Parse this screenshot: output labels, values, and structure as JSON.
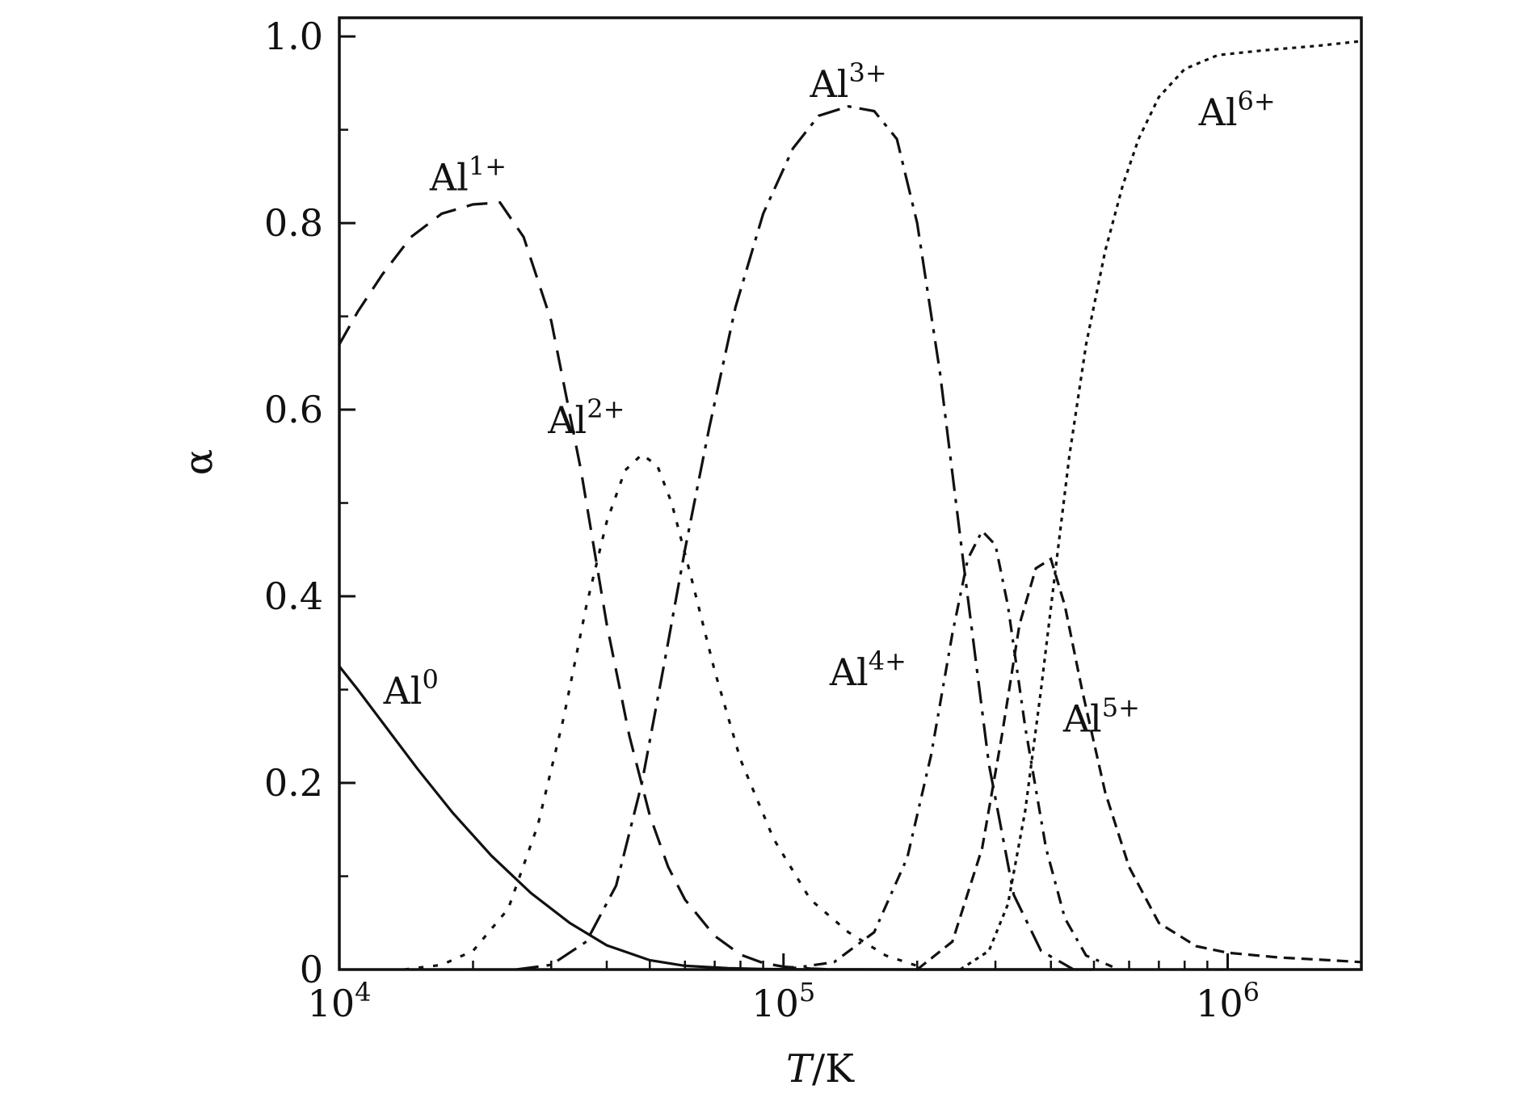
{
  "chart_data": {
    "type": "line",
    "xscale": "log",
    "xlim": [
      10000,
      2000000
    ],
    "ylim": [
      0,
      1.02
    ],
    "grid": false,
    "xlabel": "T/K",
    "xlabel_parts": {
      "T": "T",
      "rest": "/K"
    },
    "ylabel": "α",
    "x_ticks": [
      {
        "value": 10000,
        "base": "10",
        "exp": "4"
      },
      {
        "value": 100000,
        "base": "10",
        "exp": "5"
      },
      {
        "value": 1000000,
        "base": "10",
        "exp": "6"
      }
    ],
    "y_ticks": [
      {
        "value": 0,
        "label": "0"
      },
      {
        "value": 0.2,
        "label": "0.2"
      },
      {
        "value": 0.4,
        "label": "0.4"
      },
      {
        "value": 0.6,
        "label": "0.6"
      },
      {
        "value": 0.8,
        "label": "0.8"
      },
      {
        "value": 1.0,
        "label": "1.0"
      }
    ],
    "series": [
      {
        "name": "Al0",
        "base": "Al",
        "sup": "0",
        "label_at": [
          14500,
          0.285
        ],
        "dash": "",
        "x": [
          10000,
          11000,
          12500,
          15000,
          18000,
          22000,
          27000,
          33000,
          40000,
          50000,
          60000,
          75000,
          90000,
          110000,
          150000,
          200000,
          300000,
          500000
        ],
        "y": [
          0.325,
          0.3,
          0.265,
          0.215,
          0.168,
          0.122,
          0.082,
          0.05,
          0.026,
          0.01,
          0.004,
          0.0015,
          0.0005,
          0.0002,
          0.0001,
          0,
          0,
          0
        ]
      },
      {
        "name": "Al1+",
        "base": "Al",
        "sup": "1+",
        "label_at": [
          19500,
          0.835
        ],
        "dash": "26,14",
        "x": [
          10000,
          11000,
          12500,
          14500,
          17000,
          20000,
          23000,
          26000,
          30000,
          35000,
          40000,
          45000,
          50000,
          55000,
          60000,
          70000,
          80000,
          90000,
          100000,
          115000,
          130000
        ],
        "y": [
          0.67,
          0.705,
          0.745,
          0.785,
          0.81,
          0.82,
          0.822,
          0.785,
          0.695,
          0.535,
          0.37,
          0.25,
          0.165,
          0.11,
          0.075,
          0.036,
          0.016,
          0.007,
          0.003,
          0.001,
          0
        ]
      },
      {
        "name": "Al2+",
        "base": "Al",
        "sup": "2+",
        "label_at": [
          36000,
          0.575
        ],
        "dash": "6,12",
        "x": [
          14000,
          17000,
          20000,
          24000,
          28000,
          32000,
          36000,
          40000,
          44000,
          48000,
          52000,
          56000,
          62000,
          70000,
          80000,
          95000,
          115000,
          140000,
          170000,
          200000
        ],
        "y": [
          0,
          0.005,
          0.02,
          0.065,
          0.155,
          0.27,
          0.39,
          0.48,
          0.535,
          0.552,
          0.54,
          0.5,
          0.42,
          0.32,
          0.225,
          0.14,
          0.075,
          0.04,
          0.015,
          0.004
        ]
      },
      {
        "name": "Al3+",
        "base": "Al",
        "sup": "3+",
        "label_at": [
          140000,
          0.935
        ],
        "dash": "28,10,5,10",
        "x": [
          25000,
          30000,
          36000,
          42000,
          48000,
          54000,
          60000,
          68000,
          78000,
          90000,
          105000,
          120000,
          140000,
          160000,
          180000,
          200000,
          225000,
          255000,
          290000,
          330000,
          380000,
          450000
        ],
        "y": [
          0,
          0.005,
          0.03,
          0.09,
          0.2,
          0.33,
          0.45,
          0.58,
          0.71,
          0.81,
          0.88,
          0.915,
          0.925,
          0.92,
          0.89,
          0.8,
          0.64,
          0.43,
          0.22,
          0.08,
          0.02,
          0
        ]
      },
      {
        "name": "Al4+",
        "base": "Al",
        "sup": "4+",
        "label_at": [
          155000,
          0.305
        ],
        "dash": "16,9,4,9",
        "x": [
          100000,
          130000,
          160000,
          190000,
          215000,
          240000,
          260000,
          280000,
          300000,
          320000,
          350000,
          390000,
          430000,
          480000,
          550000
        ],
        "y": [
          0,
          0.008,
          0.04,
          0.12,
          0.23,
          0.36,
          0.44,
          0.47,
          0.455,
          0.39,
          0.26,
          0.13,
          0.055,
          0.015,
          0.003
        ]
      },
      {
        "name": "Al5+",
        "base": "Al",
        "sup": "5+",
        "label_at": [
          520000,
          0.255
        ],
        "dash": "14,8",
        "x": [
          200000,
          240000,
          280000,
          310000,
          340000,
          370000,
          400000,
          430000,
          470000,
          530000,
          600000,
          700000,
          850000,
          1000000,
          1300000,
          1700000,
          2000000
        ],
        "y": [
          0,
          0.03,
          0.13,
          0.25,
          0.37,
          0.43,
          0.44,
          0.39,
          0.3,
          0.19,
          0.11,
          0.05,
          0.025,
          0.018,
          0.013,
          0.01,
          0.008
        ]
      },
      {
        "name": "Al6+",
        "base": "Al",
        "sup": "6+",
        "label_at": [
          1050000,
          0.905
        ],
        "dash": "5,6",
        "x": [
          250000,
          290000,
          320000,
          350000,
          380000,
          410000,
          440000,
          480000,
          530000,
          580000,
          630000,
          700000,
          800000,
          950000,
          1200000,
          1600000,
          2000000
        ],
        "y": [
          0,
          0.02,
          0.07,
          0.17,
          0.3,
          0.43,
          0.55,
          0.67,
          0.77,
          0.84,
          0.89,
          0.935,
          0.965,
          0.98,
          0.985,
          0.99,
          0.995
        ]
      }
    ]
  }
}
